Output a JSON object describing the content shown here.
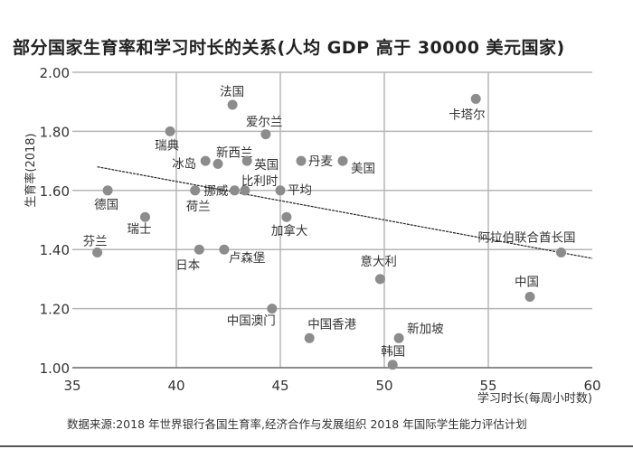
{
  "chart_data": {
    "type": "scatter",
    "title": "部分国家生育率和学习时长的关系(人均 GDP 高于 30000 美元国家)",
    "xlabel": "学习时长(每周小时数)",
    "ylabel": "生育率(2018)",
    "xlim": [
      35,
      60
    ],
    "ylim": [
      1.0,
      2.0
    ],
    "xticks": [
      "35",
      "40",
      "45",
      "50",
      "55",
      "60"
    ],
    "yticks": [
      "1.00",
      "1.20",
      "1.40",
      "1.60",
      "1.80",
      "2.00"
    ],
    "grid": true,
    "point_color": "#8c8c8c",
    "points": [
      {
        "label": "芬兰",
        "x": 36.2,
        "y": 1.39
      },
      {
        "label": "德国",
        "x": 36.7,
        "y": 1.6
      },
      {
        "label": "瑞士",
        "x": 38.5,
        "y": 1.51
      },
      {
        "label": "瑞典",
        "x": 39.7,
        "y": 1.8
      },
      {
        "label": "荷兰",
        "x": 40.9,
        "y": 1.6
      },
      {
        "label": "冰岛",
        "x": 41.4,
        "y": 1.7
      },
      {
        "label": "新西兰",
        "x": 42.0,
        "y": 1.69
      },
      {
        "label": "法国",
        "x": 42.7,
        "y": 1.89
      },
      {
        "label": "日本",
        "x": 41.1,
        "y": 1.4
      },
      {
        "label": "卢森堡",
        "x": 42.3,
        "y": 1.4
      },
      {
        "label": "挪威",
        "x": 42.8,
        "y": 1.6
      },
      {
        "label": "比利时",
        "x": 43.3,
        "y": 1.6
      },
      {
        "label": "英国",
        "x": 43.4,
        "y": 1.7
      },
      {
        "label": "爱尔兰",
        "x": 44.3,
        "y": 1.79
      },
      {
        "label": "平均",
        "x": 45.0,
        "y": 1.6
      },
      {
        "label": "加拿大",
        "x": 45.3,
        "y": 1.51
      },
      {
        "label": "中国澳门",
        "x": 44.6,
        "y": 1.2
      },
      {
        "label": "丹麦",
        "x": 46.0,
        "y": 1.7
      },
      {
        "label": "美国",
        "x": 48.0,
        "y": 1.7
      },
      {
        "label": "中国香港",
        "x": 46.4,
        "y": 1.1
      },
      {
        "label": "意大利",
        "x": 49.8,
        "y": 1.3
      },
      {
        "label": "韩国",
        "x": 50.4,
        "y": 1.01
      },
      {
        "label": "新加坡",
        "x": 50.7,
        "y": 1.1
      },
      {
        "label": "卡塔尔",
        "x": 54.4,
        "y": 1.91
      },
      {
        "label": "中国",
        "x": 57.0,
        "y": 1.24
      },
      {
        "label": "阿拉伯联合酋长国",
        "x": 58.5,
        "y": 1.39
      }
    ],
    "trendline": {
      "style": "dashed",
      "x": [
        36.2,
        60
      ],
      "y": [
        1.68,
        1.37
      ]
    },
    "source": "数据来源:2018 年世界银行各国生育率,经济合作与发展组织 2018 年国际学生能力评估计划"
  }
}
